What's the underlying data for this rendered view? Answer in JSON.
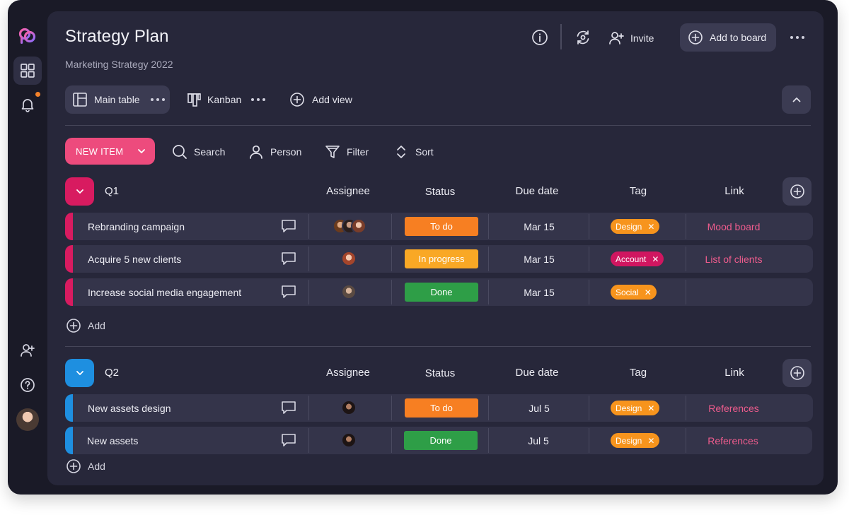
{
  "board": {
    "title": "Strategy Plan",
    "subtitle": "Marketing Strategy 2022",
    "invite_label": "Invite",
    "add_to_board_label": "Add to board"
  },
  "views": [
    {
      "label": "Main table",
      "icon": "table-layout-icon"
    },
    {
      "label": "Kanban",
      "icon": "kanban-icon"
    },
    {
      "label": "Add view",
      "icon": "plus-circle-icon"
    }
  ],
  "toolbar": {
    "new_item_label": "NEW ITEM",
    "search_label": "Search",
    "person_label": "Person",
    "filter_label": "Filter",
    "sort_label": "Sort"
  },
  "columns": {
    "assignee": "Assignee",
    "status": "Status",
    "due_date": "Due date",
    "tag": "Tag",
    "link": "Link"
  },
  "groups": [
    {
      "name": "Q1",
      "color": "#d81b60",
      "add_label": "Add",
      "rows": [
        {
          "name": "Rebranding campaign",
          "status": "To do",
          "status_color": "#f77f22",
          "due": "Mar 15",
          "tag": "Design",
          "tag_color": "#f7941d",
          "link": "Mood board"
        },
        {
          "name": "Acquire 5 new clients",
          "status": "In progress",
          "status_color": "#f9a825",
          "due": "Mar 15",
          "tag": "Account",
          "tag_color": "#d01660",
          "link": "List of clients"
        },
        {
          "name": "Increase social media engagement",
          "status": "Done",
          "status_color": "#2e9e47",
          "due": "Mar 15",
          "tag": "Social",
          "tag_color": "#f7941d",
          "link": ""
        }
      ]
    },
    {
      "name": "Q2",
      "color": "#1e8fe0",
      "add_label": "Add",
      "rows": [
        {
          "name": "New assets design",
          "status": "To do",
          "status_color": "#f77f22",
          "due": "Jul 5",
          "tag": "Design",
          "tag_color": "#f7941d",
          "link": "References"
        },
        {
          "name": "New assets",
          "status": "Done",
          "status_color": "#2e9e47",
          "due": "Jul 5",
          "tag": "Design",
          "tag_color": "#f7941d",
          "link": "References"
        }
      ]
    }
  ],
  "colors": {
    "background": "#1a1a27",
    "panel": "#27273a",
    "accent_pink": "#ed4b7d",
    "link_pink": "#ee5c8d"
  }
}
